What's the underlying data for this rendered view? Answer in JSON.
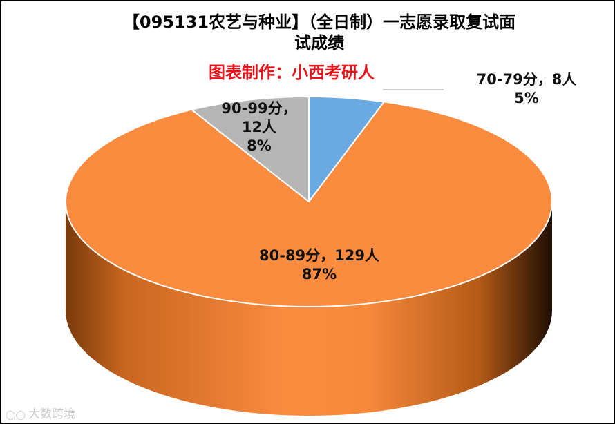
{
  "chart_data": {
    "type": "pie",
    "title_line1": "【095131农艺与种业】（全日制）一志愿录取复试面",
    "title_line2": "试成绩",
    "subtitle": "图表制作：小西考研人",
    "slices": [
      {
        "label": "70-79分",
        "count": "8人",
        "percent": 5,
        "color": "#6aa9e2"
      },
      {
        "label": "80-89分",
        "count": "129人",
        "percent": 87,
        "color": "#fb8b3f"
      },
      {
        "label": "90-99分",
        "count": "12人",
        "percent": 8,
        "color": "#b5b5b5"
      }
    ],
    "data_labels": {
      "s70": {
        "line1": "70-79分，8人",
        "line2": "5%"
      },
      "s80": {
        "line1": "80-89分，129人",
        "line2": "87%"
      },
      "s90": {
        "line1": "90-99分，",
        "line2": "12人",
        "line3": "8%"
      }
    }
  },
  "watermark": "大数跨境"
}
